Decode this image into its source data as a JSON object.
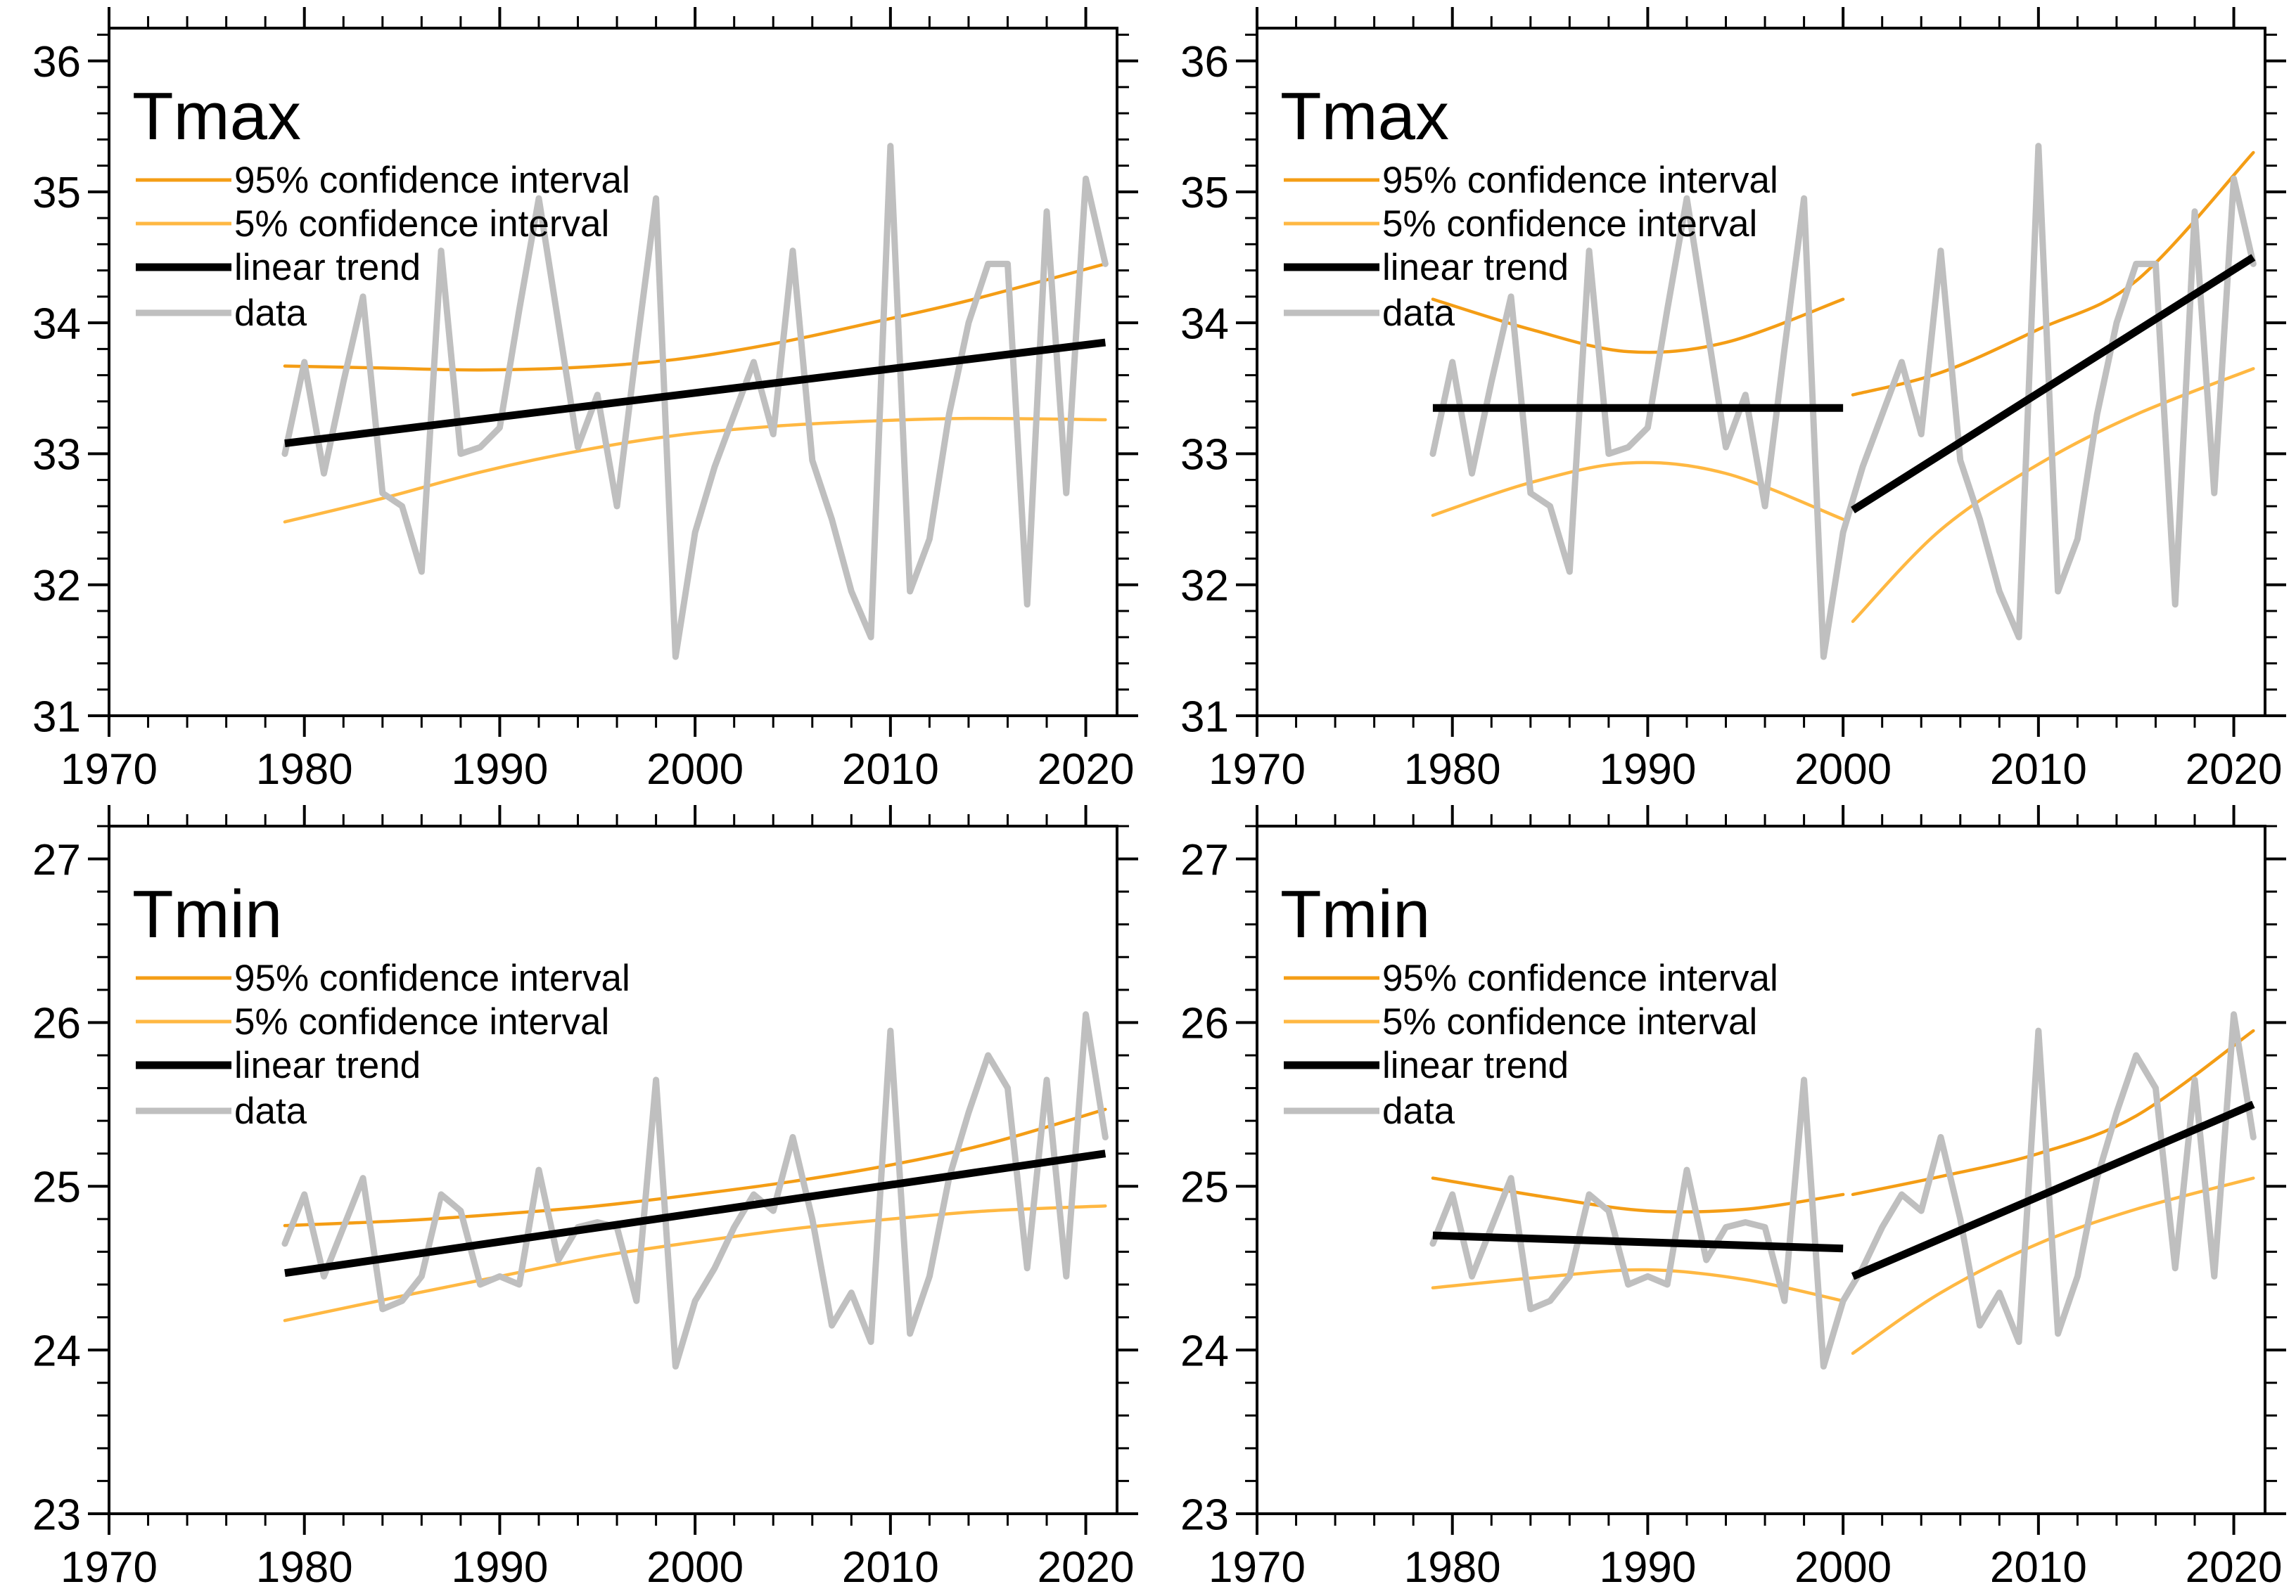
{
  "figure": {
    "description": "Four-panel climate trend figure: annual Tmax and Tmin series with linear trend fits and confidence interval curves; left panels use a single 1979-2021 fit, right panels use piecewise fits broken at year 2000.",
    "legend": {
      "ci95_label": "95% confidence interval",
      "ci5_label": "5% confidence interval",
      "trend_label": "linear trend",
      "data_label": "data"
    },
    "colors": {
      "ci95": "#F49D15",
      "ci5": "#FFB842",
      "trend": "#000000",
      "data": "#BFBFBF",
      "axis": "#000000",
      "background": "#FFFFFF"
    }
  },
  "chart_data": {
    "type": "line",
    "grid": false,
    "legend_position": "top-left-inside",
    "xlabel": "",
    "ylabel": "",
    "xlim": [
      1970,
      2021.6
    ],
    "xticks": [
      1970,
      1980,
      1990,
      2000,
      2010,
      2020
    ],
    "x_minor_step": 2,
    "y_minor_step": 0.2,
    "years": [
      1979,
      1980,
      1981,
      1982,
      1983,
      1984,
      1985,
      1986,
      1987,
      1988,
      1989,
      1990,
      1991,
      1992,
      1993,
      1994,
      1995,
      1996,
      1997,
      1998,
      1999,
      2000,
      2001,
      2002,
      2003,
      2004,
      2005,
      2006,
      2007,
      2008,
      2009,
      2010,
      2011,
      2012,
      2013,
      2014,
      2015,
      2016,
      2017,
      2018,
      2019,
      2020,
      2021
    ],
    "series": {
      "tmax": [
        33.0,
        33.7,
        32.85,
        33.55,
        34.2,
        32.7,
        32.6,
        32.1,
        34.55,
        33.0,
        33.05,
        33.2,
        34.1,
        34.95,
        34.0,
        33.05,
        33.45,
        32.6,
        33.8,
        34.95,
        31.45,
        32.4,
        32.9,
        33.3,
        33.7,
        33.15,
        34.55,
        32.95,
        32.5,
        31.95,
        31.6,
        35.35,
        31.95,
        32.35,
        33.3,
        34.0,
        34.45,
        34.45,
        31.85,
        34.85,
        32.7,
        35.1,
        34.45
      ],
      "tmin": [
        24.65,
        24.95,
        24.45,
        24.75,
        25.05,
        24.25,
        24.3,
        24.45,
        24.95,
        24.85,
        24.4,
        24.45,
        24.4,
        25.1,
        24.55,
        24.75,
        24.78,
        24.75,
        24.3,
        25.65,
        23.9,
        24.3,
        24.5,
        24.75,
        24.95,
        24.85,
        25.3,
        24.8,
        24.15,
        24.35,
        24.05,
        25.95,
        24.1,
        24.45,
        25.05,
        25.45,
        25.8,
        25.6,
        24.5,
        25.65,
        24.45,
        26.05,
        25.3
      ]
    },
    "panels": [
      {
        "id": "tmax-single-trend",
        "position": "top-left",
        "title": "Tmax",
        "series": "tmax",
        "ylim": [
          31,
          36.25
        ],
        "yticks": [
          31,
          32,
          33,
          34,
          35,
          36
        ],
        "segments": [
          {
            "trend": [
              [
                1979,
                33.08
              ],
              [
                2021,
                33.85
              ]
            ],
            "ci_upper": [
              [
                1979,
                33.67
              ],
              [
                1984,
                33.655
              ],
              [
                1989,
                33.64
              ],
              [
                1994,
                33.66
              ],
              [
                1999,
                33.72
              ],
              [
                2004,
                33.84
              ],
              [
                2009,
                34.0
              ],
              [
                2014,
                34.17
              ],
              [
                2021,
                34.45
              ]
            ],
            "ci_lower": [
              [
                1979,
                32.48
              ],
              [
                1984,
                32.66
              ],
              [
                1989,
                32.86
              ],
              [
                1994,
                33.02
              ],
              [
                1999,
                33.14
              ],
              [
                2004,
                33.21
              ],
              [
                2009,
                33.25
              ],
              [
                2014,
                33.27
              ],
              [
                2021,
                33.26
              ]
            ]
          }
        ]
      },
      {
        "id": "tmax-breakpoint-trend",
        "position": "top-right",
        "title": "Tmax",
        "series": "tmax",
        "ylim": [
          31,
          36.25
        ],
        "yticks": [
          31,
          32,
          33,
          34,
          35,
          36
        ],
        "segments": [
          {
            "trend": [
              [
                1979,
                33.35
              ],
              [
                2000,
                33.35
              ]
            ],
            "ci_upper": [
              [
                1979,
                34.18
              ],
              [
                1984,
                33.95
              ],
              [
                1989,
                33.78
              ],
              [
                1994,
                33.85
              ],
              [
                2000,
                34.18
              ]
            ],
            "ci_lower": [
              [
                1979,
                32.53
              ],
              [
                1984,
                32.78
              ],
              [
                1989,
                32.93
              ],
              [
                1994,
                32.85
              ],
              [
                2000,
                32.5
              ]
            ]
          },
          {
            "trend": [
              [
                2000.5,
                32.57
              ],
              [
                2021,
                34.5
              ]
            ],
            "ci_upper": [
              [
                2000.5,
                33.45
              ],
              [
                2005,
                33.62
              ],
              [
                2010,
                33.95
              ],
              [
                2015,
                34.32
              ],
              [
                2021,
                35.3
              ]
            ],
            "ci_lower": [
              [
                2000.5,
                31.72
              ],
              [
                2005,
                32.42
              ],
              [
                2010,
                32.92
              ],
              [
                2015,
                33.3
              ],
              [
                2021,
                33.65
              ]
            ]
          }
        ]
      },
      {
        "id": "tmin-single-trend",
        "position": "bottom-left",
        "title": "Tmin",
        "series": "tmin",
        "ylim": [
          23,
          27.2
        ],
        "yticks": [
          23,
          24,
          25,
          26,
          27
        ],
        "segments": [
          {
            "trend": [
              [
                1979,
                24.47
              ],
              [
                2021,
                25.2
              ]
            ],
            "ci_upper": [
              [
                1979,
                24.76
              ],
              [
                1985,
                24.79
              ],
              [
                1990,
                24.83
              ],
              [
                1995,
                24.88
              ],
              [
                2000,
                24.95
              ],
              [
                2005,
                25.03
              ],
              [
                2010,
                25.13
              ],
              [
                2015,
                25.26
              ],
              [
                2021,
                25.47
              ]
            ],
            "ci_lower": [
              [
                1979,
                24.18
              ],
              [
                1985,
                24.33
              ],
              [
                1990,
                24.45
              ],
              [
                1995,
                24.57
              ],
              [
                2000,
                24.66
              ],
              [
                2005,
                24.74
              ],
              [
                2010,
                24.8
              ],
              [
                2015,
                24.85
              ],
              [
                2021,
                24.88
              ]
            ]
          }
        ]
      },
      {
        "id": "tmin-breakpoint-trend",
        "position": "bottom-right",
        "title": "Tmin",
        "series": "tmin",
        "ylim": [
          23,
          27.2
        ],
        "yticks": [
          23,
          24,
          25,
          26,
          27
        ],
        "segments": [
          {
            "trend": [
              [
                1979,
                24.7
              ],
              [
                2000,
                24.62
              ]
            ],
            "ci_upper": [
              [
                1979,
                25.05
              ],
              [
                1985,
                24.93
              ],
              [
                1990,
                24.85
              ],
              [
                1995,
                24.86
              ],
              [
                2000,
                24.95
              ]
            ],
            "ci_lower": [
              [
                1979,
                24.38
              ],
              [
                1985,
                24.45
              ],
              [
                1990,
                24.49
              ],
              [
                1995,
                24.43
              ],
              [
                2000,
                24.3
              ]
            ]
          },
          {
            "trend": [
              [
                2000.5,
                24.45
              ],
              [
                2021,
                25.5
              ]
            ],
            "ci_upper": [
              [
                2000.5,
                24.95
              ],
              [
                2005,
                25.06
              ],
              [
                2010,
                25.2
              ],
              [
                2015,
                25.43
              ],
              [
                2021,
                25.95
              ]
            ],
            "ci_lower": [
              [
                2000.5,
                23.98
              ],
              [
                2005,
                24.35
              ],
              [
                2010,
                24.65
              ],
              [
                2015,
                24.86
              ],
              [
                2021,
                25.05
              ]
            ]
          }
        ]
      }
    ]
  }
}
